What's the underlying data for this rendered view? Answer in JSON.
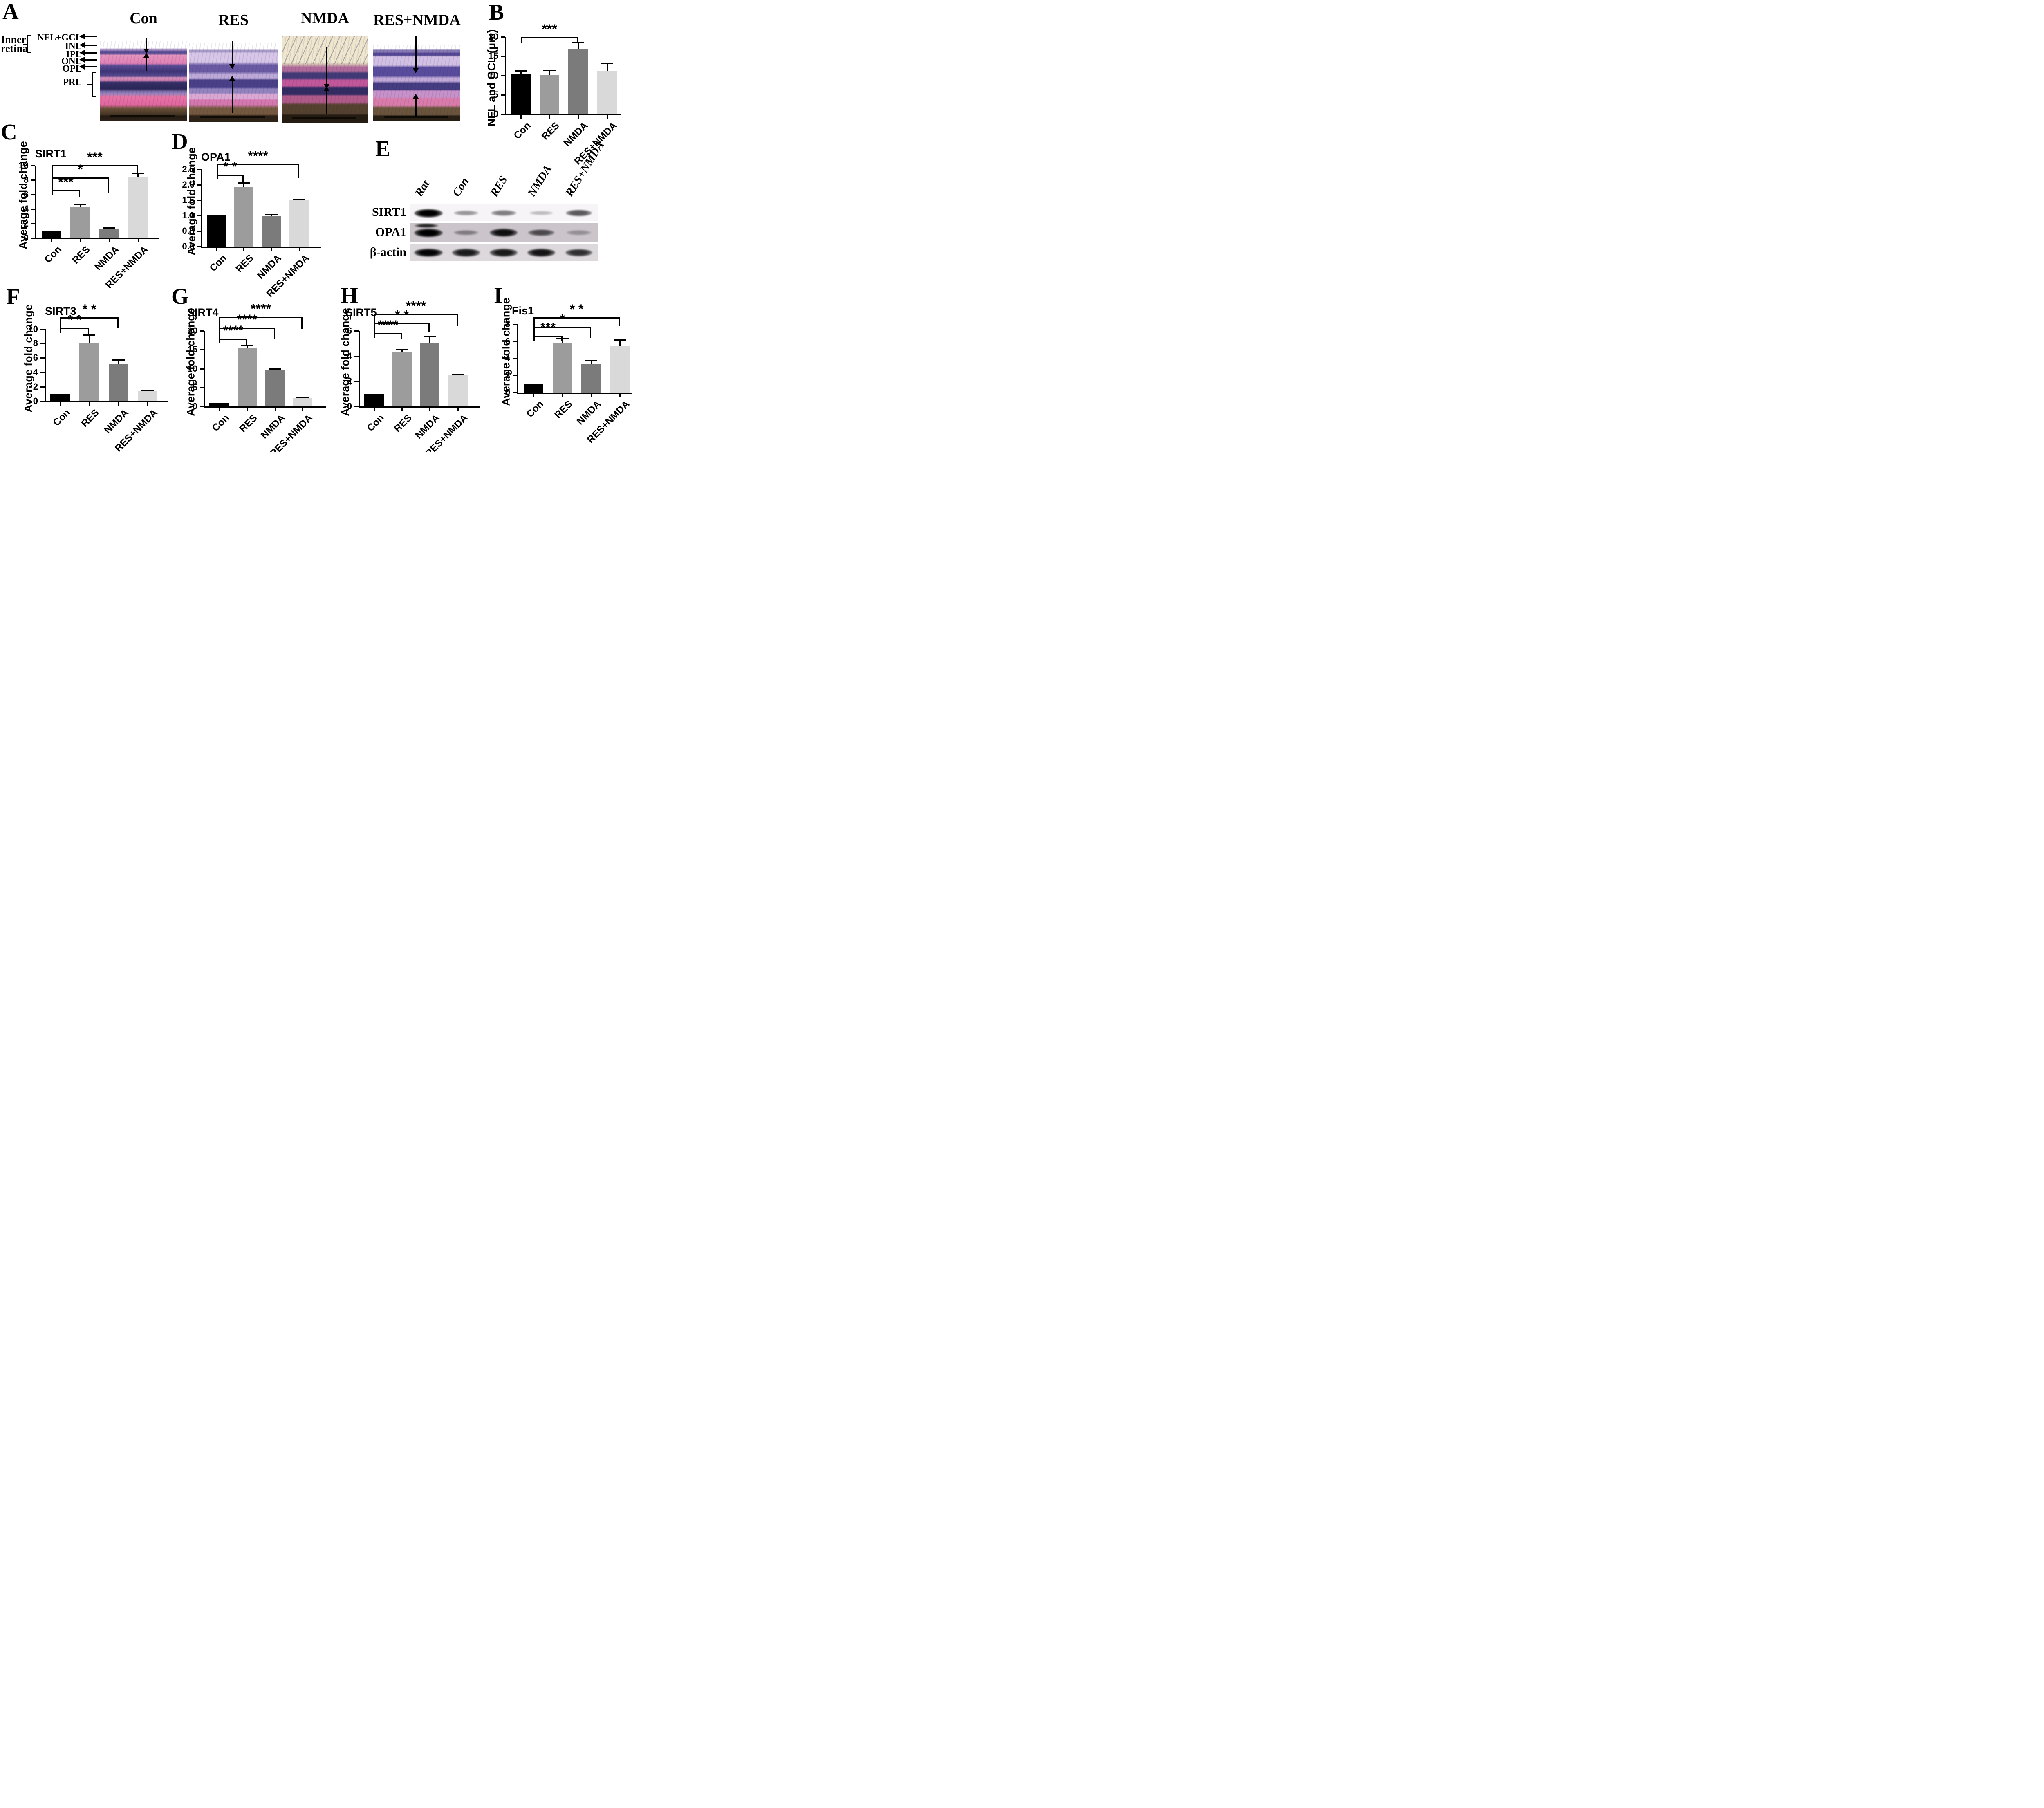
{
  "panel_a": {
    "label": "A",
    "region_label": [
      "Inner",
      "retina"
    ],
    "group_titles": [
      "Con",
      "RES",
      "NMDA",
      "RES+NMDA"
    ],
    "layer_labels": [
      "NFL+GCL",
      "INL",
      "IPL",
      "ONL",
      "OPL",
      "PRL"
    ],
    "stain_palette": {
      "eosin_pink": "#e081b6",
      "hematoxylin_purple": "#3f3578",
      "vacuole_cream": "#efe7cd",
      "outer_segment_brown": "#54412e"
    }
  },
  "panel_e": {
    "label": "E",
    "lanes": [
      "Rat",
      "Con",
      "RES",
      "NMDA",
      "RES+NMDA"
    ],
    "rows": [
      {
        "name": "SIRT1",
        "intensities": [
          1.0,
          0.35,
          0.45,
          0.2,
          0.6
        ]
      },
      {
        "name": "OPA1",
        "intensities": [
          1.0,
          0.35,
          0.9,
          0.6,
          0.25
        ]
      },
      {
        "name": "β-actin",
        "intensities": [
          0.95,
          0.85,
          0.85,
          0.88,
          0.75
        ]
      }
    ]
  },
  "chart_data": [
    {
      "id": "B",
      "panel_label": "B",
      "type": "bar",
      "title": "",
      "ylabel": "NFL and GCL (μm)",
      "categories": [
        "Con",
        "RES",
        "NMDA",
        "RES+NMDA"
      ],
      "values": [
        10.3,
        10.2,
        16.8,
        11.2
      ],
      "errors": [
        0.9,
        1.1,
        1.7,
        2.0
      ],
      "yticks": [
        "0",
        "5",
        "10",
        "15",
        "20"
      ],
      "ylim": [
        0,
        20
      ],
      "bar_colors": [
        "#000000",
        "#9c9c9c",
        "#7b7b7b",
        "#d9d9d9"
      ],
      "significance": [
        {
          "from": "Con",
          "to": "NMDA",
          "label": "***"
        }
      ]
    },
    {
      "id": "C",
      "panel_label": "C",
      "type": "bar",
      "title": "SIRT1",
      "ylabel": "Average fold change",
      "categories": [
        "Con",
        "RES",
        "NMDA",
        "RES+NMDA"
      ],
      "values": [
        1.0,
        4.3,
        1.3,
        8.4
      ],
      "errors": [
        0,
        0.4,
        0.1,
        0.6
      ],
      "yticks": [
        "0",
        "2",
        "4",
        "6",
        "8",
        "10"
      ],
      "ylim": [
        0,
        10
      ],
      "bar_colors": [
        "#000000",
        "#9c9c9c",
        "#7b7b7b",
        "#d9d9d9"
      ],
      "significance": [
        {
          "from": "Con",
          "to": "RES",
          "label": "***"
        },
        {
          "from": "Con",
          "to": "NMDA",
          "label": "*"
        },
        {
          "from": "Con",
          "to": "RES+NMDA",
          "label": "***"
        }
      ]
    },
    {
      "id": "D",
      "panel_label": "D",
      "type": "bar",
      "title": "OPA1",
      "ylabel": "Average fold change",
      "categories": [
        "Con",
        "RES",
        "NMDA",
        "RES+NMDA"
      ],
      "values": [
        1.0,
        1.93,
        0.98,
        1.51
      ],
      "errors": [
        0,
        0.14,
        0.05,
        0.02
      ],
      "yticks": [
        "0.0",
        "0.5",
        "1.0",
        "1.5",
        "2.0",
        "2.5"
      ],
      "ylim": [
        0,
        2.5
      ],
      "bar_colors": [
        "#000000",
        "#9c9c9c",
        "#7b7b7b",
        "#d9d9d9"
      ],
      "significance": [
        {
          "from": "Con",
          "to": "RES",
          "label": "* *"
        },
        {
          "from": "Con",
          "to": "RES+NMDA",
          "label": "****"
        }
      ]
    },
    {
      "id": "F",
      "panel_label": "F",
      "type": "bar",
      "title": "SIRT3",
      "ylabel": "Average fold change",
      "categories": [
        "Con",
        "RES",
        "NMDA",
        "RES+NMDA"
      ],
      "values": [
        1.0,
        8.1,
        5.1,
        1.35
      ],
      "errors": [
        0,
        1.1,
        0.65,
        0.15
      ],
      "yticks": [
        "0",
        "2",
        "4",
        "6",
        "8",
        "10"
      ],
      "ylim": [
        0,
        10
      ],
      "bar_colors": [
        "#000000",
        "#9c9c9c",
        "#7b7b7b",
        "#d9d9d9"
      ],
      "significance": [
        {
          "from": "Con",
          "to": "RES",
          "label": "* *"
        },
        {
          "from": "Con",
          "to": "NMDA",
          "label": "* *"
        }
      ]
    },
    {
      "id": "G",
      "panel_label": "G",
      "type": "bar",
      "title": "SIRT4",
      "ylabel": "Average fold change",
      "categories": [
        "Con",
        "RES",
        "NMDA",
        "RES+NMDA"
      ],
      "values": [
        1.0,
        15.4,
        9.5,
        2.25
      ],
      "errors": [
        0,
        0.7,
        0.45,
        0.1
      ],
      "yticks": [
        "0",
        "5",
        "10",
        "15",
        "20"
      ],
      "ylim": [
        0,
        20
      ],
      "bar_colors": [
        "#000000",
        "#9c9c9c",
        "#7b7b7b",
        "#d9d9d9"
      ],
      "significance": [
        {
          "from": "Con",
          "to": "RES",
          "label": "****"
        },
        {
          "from": "Con",
          "to": "NMDA",
          "label": "****"
        },
        {
          "from": "Con",
          "to": "RES+NMDA",
          "label": "****"
        }
      ]
    },
    {
      "id": "H",
      "panel_label": "H",
      "type": "bar",
      "title": "SIRT5",
      "ylabel": "Average fold change",
      "categories": [
        "Con",
        "RES",
        "NMDA",
        "RES+NMDA"
      ],
      "values": [
        1.0,
        4.35,
        5.0,
        2.5
      ],
      "errors": [
        0,
        0.2,
        0.55,
        0.05
      ],
      "yticks": [
        "0",
        "2",
        "4",
        "6"
      ],
      "ylim": [
        0,
        6
      ],
      "bar_colors": [
        "#000000",
        "#9c9c9c",
        "#7b7b7b",
        "#d9d9d9"
      ],
      "significance": [
        {
          "from": "Con",
          "to": "RES",
          "label": "****"
        },
        {
          "from": "Con",
          "to": "NMDA",
          "label": "* *"
        },
        {
          "from": "Con",
          "to": "RES+NMDA",
          "label": "****"
        }
      ]
    },
    {
      "id": "I",
      "panel_label": "I",
      "type": "bar",
      "title": "Fis1",
      "ylabel": "Average fold change",
      "categories": [
        "Con",
        "RES",
        "NMDA",
        "RES+NMDA"
      ],
      "values": [
        1.0,
        5.85,
        3.35,
        5.4
      ],
      "errors": [
        0,
        0.5,
        0.45,
        0.8
      ],
      "yticks": [
        "0",
        "2",
        "4",
        "6",
        "8"
      ],
      "ylim": [
        0,
        8
      ],
      "bar_colors": [
        "#000000",
        "#9c9c9c",
        "#7b7b7b",
        "#d9d9d9"
      ],
      "significance": [
        {
          "from": "Con",
          "to": "RES",
          "label": "***"
        },
        {
          "from": "Con",
          "to": "NMDA",
          "label": "*"
        },
        {
          "from": "Con",
          "to": "RES+NMDA",
          "label": "* *"
        }
      ]
    }
  ]
}
